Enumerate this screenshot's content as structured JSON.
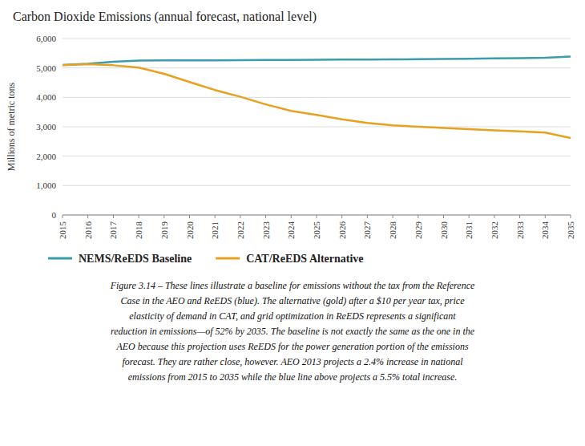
{
  "chart_data": {
    "type": "line",
    "title": "Carbon Dioxide Emissions (annual forecast, national level)",
    "y_label": "Millions of metric tons",
    "x": [
      2015,
      2016,
      2017,
      2018,
      2019,
      2020,
      2021,
      2022,
      2023,
      2024,
      2025,
      2026,
      2027,
      2028,
      2029,
      2030,
      2031,
      2032,
      2033,
      2034,
      2035
    ],
    "series": [
      {
        "name": "NEMS/ReEDS Baseline",
        "color": "#3A9DAA",
        "values": [
          5100,
          5140,
          5210,
          5250,
          5255,
          5255,
          5260,
          5265,
          5268,
          5272,
          5278,
          5282,
          5286,
          5290,
          5295,
          5302,
          5312,
          5322,
          5333,
          5348,
          5385
        ]
      },
      {
        "name": "CAT/ReEDS Alternative",
        "color": "#E8A020",
        "values": [
          5090,
          5130,
          5090,
          5010,
          4800,
          4520,
          4250,
          4020,
          3760,
          3540,
          3400,
          3250,
          3130,
          3050,
          3000,
          2960,
          2920,
          2880,
          2840,
          2800,
          2620
        ]
      }
    ],
    "xlim": [
      2015,
      2035
    ],
    "xticks": [
      2015,
      2016,
      2017,
      2018,
      2019,
      2020,
      2021,
      2022,
      2023,
      2024,
      2025,
      2026,
      2027,
      2028,
      2029,
      2030,
      2031,
      2032,
      2033,
      2034,
      2035
    ],
    "ylim": [
      0,
      6000
    ],
    "yticks": [
      0,
      {
        "value": 1000,
        "label": "1,000"
      },
      {
        "value": 2000,
        "label": "2,000"
      },
      {
        "value": 3000,
        "label": "3,000"
      },
      {
        "value": 4000,
        "label": "4,000"
      },
      {
        "value": 5000,
        "label": "5,000"
      },
      {
        "value": 6000,
        "label": "6,000"
      }
    ],
    "grid": true,
    "legend": "bottom",
    "annotations": [
      "Figure 3.14 – These lines illustrate a baseline for emissions without the tax from the Reference",
      "Case in the AEO and ReEDS (blue). The alternative (gold) after a $10 per year tax, price",
      "elasticity of demand in CAT, and grid optimization in ReEDS represents a significant",
      "reduction in emissions—of 52% by 2035. The baseline is not exactly the same as the one in the",
      "AEO because this projection uses ReEDS for the power generation portion of the emissions",
      "forecast. They are rather close, however. AEO 2013 projects a 2.4% increase in national",
      "emissions from 2015 to 2035 while the blue line above projects a 5.5% total increase."
    ]
  }
}
